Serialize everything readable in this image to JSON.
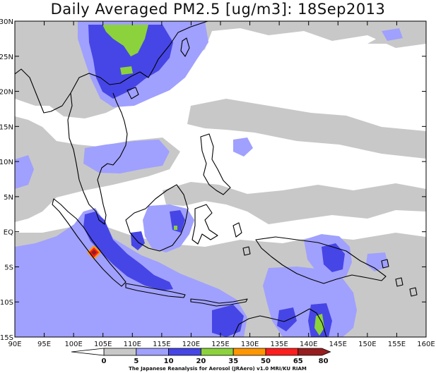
{
  "title": "Daily Averaged PM2.5 [ug/m3]: 18Sep2013",
  "credit": "The Japanese Reanalysis for Aerosol (JRAero) v1.0 MRI/KU RIAM",
  "lat_labels": [
    "30N",
    "25N",
    "20N",
    "15N",
    "10N",
    "5N",
    "EQ",
    "5S",
    "10S",
    "15S"
  ],
  "lon_labels": [
    "90E",
    "95E",
    "100E",
    "105E",
    "110E",
    "115E",
    "120E",
    "125E",
    "130E",
    "135E",
    "140E",
    "145E",
    "150E",
    "155E",
    "160E"
  ],
  "colorbar": {
    "levels": [
      "0",
      "5",
      "10",
      "20",
      "35",
      "50",
      "65",
      "80"
    ],
    "colors": [
      "#ffffff",
      "#c8c8c8",
      "#a0a0ff",
      "#4646e6",
      "#8cd23c",
      "#ff9600",
      "#ff1e1e",
      "#961e1e"
    ]
  },
  "palette": {
    "background": "#ffffff",
    "gray": "#c8c8c8",
    "light_blue": "#a0a0ff",
    "blue": "#4646e6",
    "green": "#8cd23c",
    "orange": "#ff9600",
    "red": "#ff1e1e",
    "darkred": "#961e1e"
  }
}
